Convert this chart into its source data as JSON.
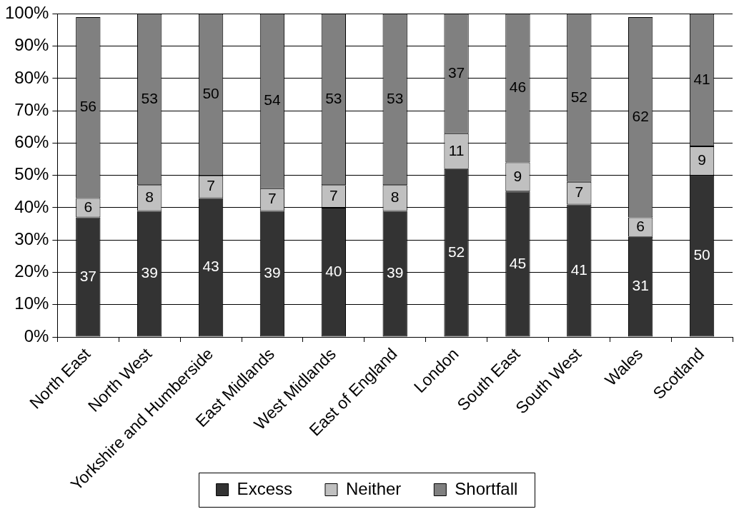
{
  "chart_data": {
    "type": "bar",
    "stacked": true,
    "categories": [
      "North East",
      "North West",
      "Yorkshire and Humberside",
      "East Midlands",
      "West Midlands",
      "East of England",
      "London",
      "South East",
      "South West",
      "Wales",
      "Scotland"
    ],
    "series": [
      {
        "name": "Excess",
        "color": "#333333",
        "values": [
          37,
          39,
          43,
          39,
          40,
          39,
          52,
          45,
          41,
          31,
          50
        ]
      },
      {
        "name": "Neither",
        "color": "#c0c0c0",
        "values": [
          6,
          8,
          7,
          7,
          7,
          8,
          11,
          9,
          7,
          6,
          9
        ]
      },
      {
        "name": "Shortfall",
        "color": "#808080",
        "values": [
          56,
          53,
          50,
          54,
          53,
          53,
          37,
          46,
          52,
          62,
          41
        ]
      }
    ],
    "ylim": [
      0,
      100
    ],
    "yticks": [
      {
        "value": 0,
        "label": "0%"
      },
      {
        "value": 10,
        "label": "10%"
      },
      {
        "value": 20,
        "label": "20%"
      },
      {
        "value": 30,
        "label": "30%"
      },
      {
        "value": 40,
        "label": "40%"
      },
      {
        "value": 50,
        "label": "50%"
      },
      {
        "value": 60,
        "label": "60%"
      },
      {
        "value": 70,
        "label": "70%"
      },
      {
        "value": 80,
        "label": "80%"
      },
      {
        "value": 90,
        "label": "90%"
      },
      {
        "value": 100,
        "label": "100%"
      }
    ],
    "grid": "y",
    "legend": "bottom",
    "data_labels": true
  }
}
